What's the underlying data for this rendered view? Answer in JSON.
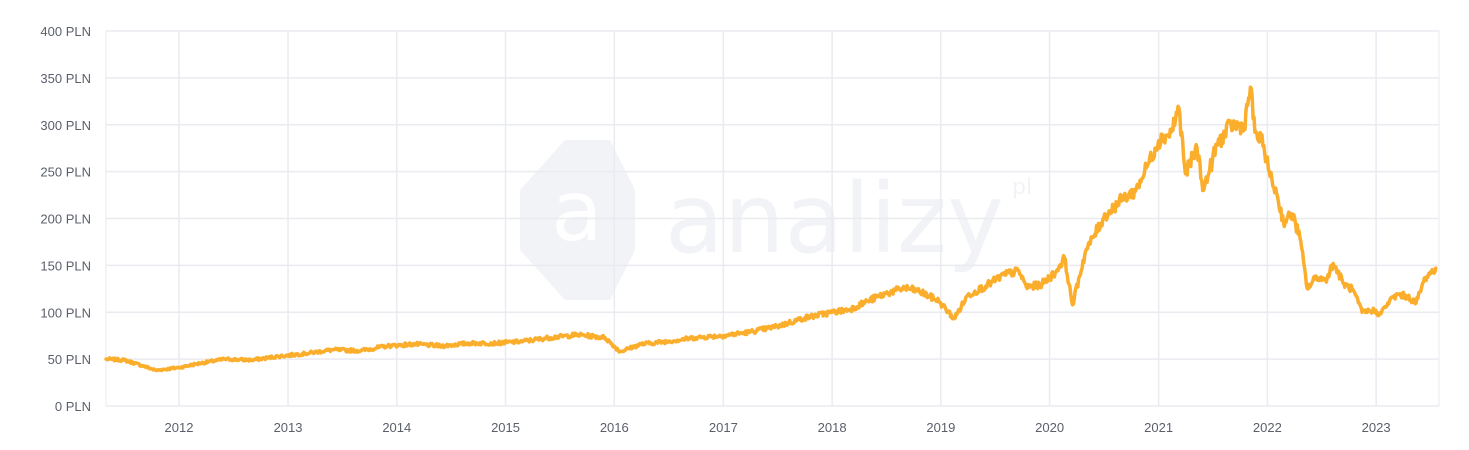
{
  "watermark": {
    "brand": "analizy",
    "suffix": "pl",
    "logo_letter": "a"
  },
  "colors": {
    "line": "#FBAE2C",
    "grid": "#E9EBF0",
    "axis_text": "#5A5F6B",
    "watermark": "#F2F3F6"
  },
  "chart_data": {
    "type": "line",
    "title": "",
    "xlabel": "",
    "ylabel": "",
    "y_unit": "PLN",
    "ylim": [
      0,
      400
    ],
    "y_ticks": [
      "0 PLN",
      "50 PLN",
      "100 PLN",
      "150 PLN",
      "200 PLN",
      "250 PLN",
      "300 PLN",
      "350 PLN",
      "400 PLN"
    ],
    "xlim": [
      "2011-05-01",
      "2023-07-31"
    ],
    "x_ticks": [
      "2012",
      "2013",
      "2014",
      "2015",
      "2016",
      "2017",
      "2018",
      "2019",
      "2020",
      "2021",
      "2022",
      "2023"
    ],
    "grid": true,
    "series": [
      {
        "x": [
          "2011-05-01",
          "2011-07-01",
          "2011-09-01",
          "2011-10-15",
          "2012-01-01",
          "2012-03-01",
          "2012-06-01",
          "2012-09-01",
          "2012-12-01",
          "2013-03-01",
          "2013-06-01",
          "2013-09-01",
          "2013-12-01",
          "2014-03-01",
          "2014-06-01",
          "2014-09-01",
          "2014-12-01",
          "2015-03-01",
          "2015-06-01",
          "2015-09-01",
          "2015-12-01",
          "2016-01-20",
          "2016-04-01",
          "2016-07-01",
          "2016-10-01",
          "2017-01-01",
          "2017-04-01",
          "2017-07-01",
          "2017-10-01",
          "2018-01-01",
          "2018-03-01",
          "2018-05-01",
          "2018-07-01",
          "2018-09-01",
          "2018-10-15",
          "2018-12-25",
          "2019-02-15",
          "2019-04-01",
          "2019-06-01",
          "2019-08-01",
          "2019-09-20",
          "2019-10-15",
          "2019-12-01",
          "2020-01-20",
          "2020-02-20",
          "2020-03-18",
          "2020-05-01",
          "2020-07-01",
          "2020-09-01",
          "2020-10-15",
          "2020-11-15",
          "2021-01-01",
          "2021-02-12",
          "2021-03-10",
          "2021-04-01",
          "2021-05-10",
          "2021-06-01",
          "2021-07-15",
          "2021-09-01",
          "2021-10-15",
          "2021-11-05",
          "2021-11-20",
          "2021-12-20",
          "2022-01-10",
          "2022-02-01",
          "2022-02-24",
          "2022-03-25",
          "2022-04-20",
          "2022-05-15",
          "2022-06-15",
          "2022-07-15",
          "2022-08-10",
          "2022-09-15",
          "2022-10-15",
          "2022-11-15",
          "2022-12-20",
          "2023-01-15",
          "2023-02-15",
          "2023-03-15",
          "2023-04-15",
          "2023-05-15",
          "2023-06-15",
          "2023-07-20"
        ],
        "y": [
          50,
          49,
          43,
          38,
          41,
          45,
          50,
          49,
          53,
          56,
          60,
          59,
          64,
          66,
          64,
          67,
          67,
          69,
          73,
          76,
          73,
          58,
          66,
          69,
          73,
          75,
          79,
          85,
          94,
          100,
          103,
          112,
          120,
          126,
          123,
          112,
          93,
          118,
          128,
          140,
          144,
          127,
          129,
          142,
          158,
          108,
          165,
          201,
          221,
          229,
          250,
          283,
          292,
          318,
          248,
          275,
          230,
          278,
          300,
          298,
          340,
          292,
          278,
          245,
          227,
          196,
          205,
          180,
          125,
          138,
          134,
          152,
          130,
          124,
          100,
          102,
          98,
          112,
          119,
          117,
          110,
          137,
          147
        ]
      }
    ]
  }
}
